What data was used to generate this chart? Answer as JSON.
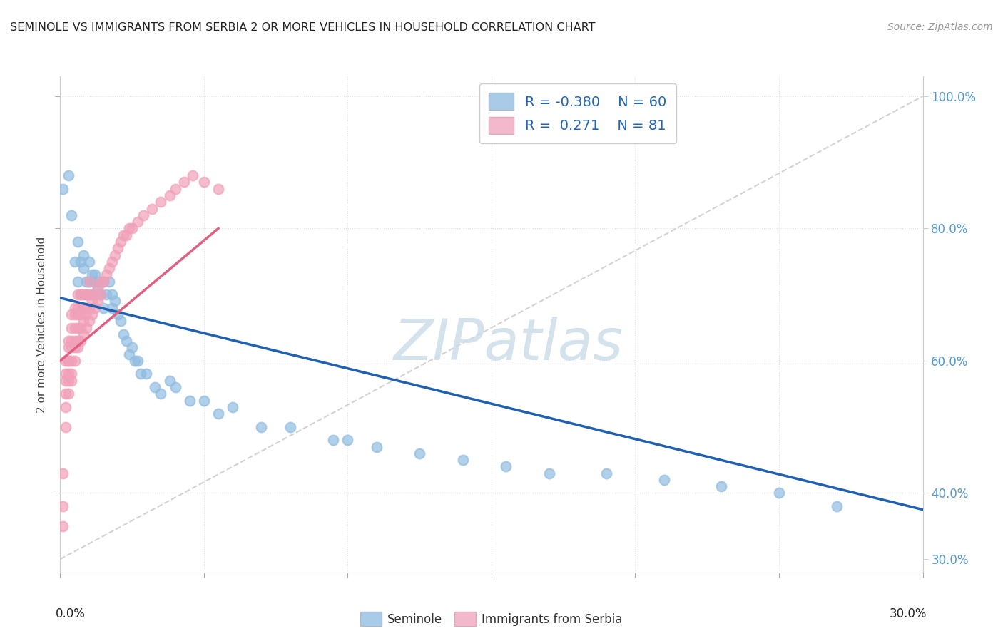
{
  "title": "SEMINOLE VS IMMIGRANTS FROM SERBIA 2 OR MORE VEHICLES IN HOUSEHOLD CORRELATION CHART",
  "source": "Source: ZipAtlas.com",
  "ylabel": "2 or more Vehicles in Household",
  "xlim": [
    0.0,
    0.3
  ],
  "ylim": [
    0.28,
    1.03
  ],
  "seminole_color": "#90bce0",
  "serbia_color": "#f0a0b8",
  "trend_blue": "#2060b0",
  "trend_pink": "#e06080",
  "ref_line_color": "#c8c8c8",
  "legend_blue_color": "#a8cce8",
  "legend_pink_color": "#f4b8cc",
  "R_blue": "-0.380",
  "N_blue": "60",
  "R_pink": "0.271",
  "N_pink": "81",
  "seminole_x": [
    0.001,
    0.003,
    0.004,
    0.005,
    0.006,
    0.006,
    0.007,
    0.007,
    0.008,
    0.008,
    0.009,
    0.009,
    0.01,
    0.01,
    0.011,
    0.011,
    0.012,
    0.012,
    0.013,
    0.013,
    0.014,
    0.015,
    0.015,
    0.016,
    0.017,
    0.018,
    0.018,
    0.019,
    0.02,
    0.021,
    0.022,
    0.023,
    0.024,
    0.025,
    0.026,
    0.027,
    0.028,
    0.03,
    0.033,
    0.035,
    0.038,
    0.04,
    0.045,
    0.05,
    0.055,
    0.06,
    0.07,
    0.08,
    0.095,
    0.1,
    0.11,
    0.125,
    0.14,
    0.155,
    0.17,
    0.19,
    0.21,
    0.23,
    0.25,
    0.27
  ],
  "seminole_y": [
    0.86,
    0.88,
    0.82,
    0.75,
    0.78,
    0.72,
    0.75,
    0.7,
    0.74,
    0.76,
    0.72,
    0.7,
    0.72,
    0.75,
    0.73,
    0.7,
    0.72,
    0.73,
    0.72,
    0.71,
    0.7,
    0.72,
    0.68,
    0.7,
    0.72,
    0.7,
    0.68,
    0.69,
    0.67,
    0.66,
    0.64,
    0.63,
    0.61,
    0.62,
    0.6,
    0.6,
    0.58,
    0.58,
    0.56,
    0.55,
    0.57,
    0.56,
    0.54,
    0.54,
    0.52,
    0.53,
    0.5,
    0.5,
    0.48,
    0.48,
    0.47,
    0.46,
    0.45,
    0.44,
    0.43,
    0.43,
    0.42,
    0.41,
    0.4,
    0.38
  ],
  "serbia_x": [
    0.001,
    0.001,
    0.001,
    0.002,
    0.002,
    0.002,
    0.002,
    0.002,
    0.002,
    0.003,
    0.003,
    0.003,
    0.003,
    0.003,
    0.003,
    0.003,
    0.004,
    0.004,
    0.004,
    0.004,
    0.004,
    0.004,
    0.004,
    0.005,
    0.005,
    0.005,
    0.005,
    0.005,
    0.005,
    0.006,
    0.006,
    0.006,
    0.006,
    0.006,
    0.006,
    0.007,
    0.007,
    0.007,
    0.007,
    0.007,
    0.008,
    0.008,
    0.008,
    0.008,
    0.009,
    0.009,
    0.009,
    0.009,
    0.01,
    0.01,
    0.01,
    0.01,
    0.011,
    0.011,
    0.012,
    0.012,
    0.013,
    0.013,
    0.014,
    0.014,
    0.015,
    0.016,
    0.017,
    0.018,
    0.019,
    0.02,
    0.021,
    0.022,
    0.023,
    0.024,
    0.025,
    0.027,
    0.029,
    0.032,
    0.035,
    0.038,
    0.04,
    0.043,
    0.046,
    0.05,
    0.055
  ],
  "serbia_y": [
    0.43,
    0.35,
    0.38,
    0.5,
    0.53,
    0.55,
    0.57,
    0.58,
    0.6,
    0.55,
    0.57,
    0.58,
    0.6,
    0.62,
    0.63,
    0.6,
    0.57,
    0.58,
    0.6,
    0.62,
    0.63,
    0.65,
    0.67,
    0.6,
    0.62,
    0.63,
    0.65,
    0.67,
    0.68,
    0.62,
    0.63,
    0.65,
    0.67,
    0.68,
    0.7,
    0.63,
    0.65,
    0.67,
    0.68,
    0.7,
    0.64,
    0.66,
    0.68,
    0.7,
    0.65,
    0.67,
    0.68,
    0.7,
    0.66,
    0.68,
    0.7,
    0.72,
    0.67,
    0.69,
    0.68,
    0.7,
    0.69,
    0.71,
    0.7,
    0.72,
    0.72,
    0.73,
    0.74,
    0.75,
    0.76,
    0.77,
    0.78,
    0.79,
    0.79,
    0.8,
    0.8,
    0.81,
    0.82,
    0.83,
    0.84,
    0.85,
    0.86,
    0.87,
    0.88,
    0.87,
    0.86
  ],
  "background_color": "#ffffff",
  "grid_color": "#e0e0e0",
  "watermark_color": "#ccdde8"
}
